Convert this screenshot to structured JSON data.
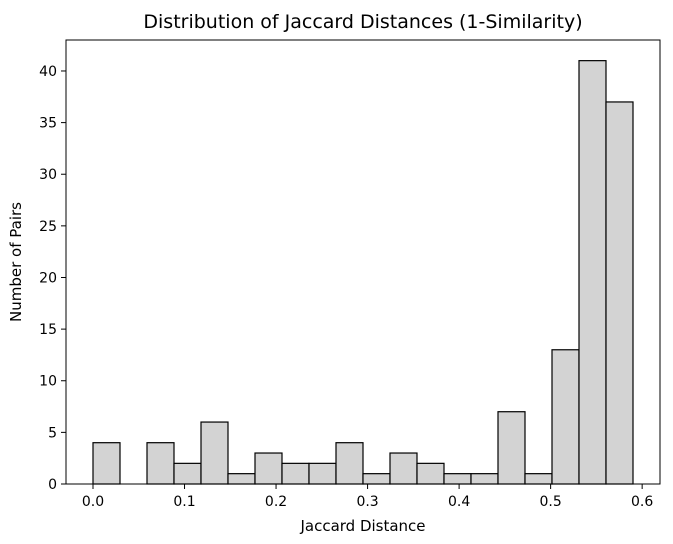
{
  "chart_data": {
    "type": "bar",
    "title": "Distribution of Jaccard Distances (1-Similarity)",
    "xlabel": "Jaccard Distance",
    "ylabel": "Number of Pairs",
    "xlim": [
      -0.0295,
      0.6195
    ],
    "ylim": [
      0,
      43
    ],
    "xticks": [
      "0.0",
      "0.1",
      "0.2",
      "0.3",
      "0.4",
      "0.5",
      "0.6"
    ],
    "yticks": [
      "0",
      "5",
      "10",
      "15",
      "20",
      "25",
      "30",
      "35",
      "40"
    ],
    "bin_edges": [
      0.0,
      0.0295,
      0.059,
      0.0885,
      0.118,
      0.1475,
      0.177,
      0.2065,
      0.236,
      0.2655,
      0.295,
      0.3245,
      0.354,
      0.3835,
      0.413,
      0.4425,
      0.472,
      0.5015,
      0.531,
      0.5605,
      0.59
    ],
    "values": [
      4,
      0,
      4,
      2,
      6,
      1,
      3,
      2,
      2,
      4,
      1,
      3,
      2,
      1,
      1,
      7,
      1,
      13,
      41,
      37
    ],
    "bar_color": "#d3d3d3",
    "edge_color": "#000000",
    "grid": false
  }
}
